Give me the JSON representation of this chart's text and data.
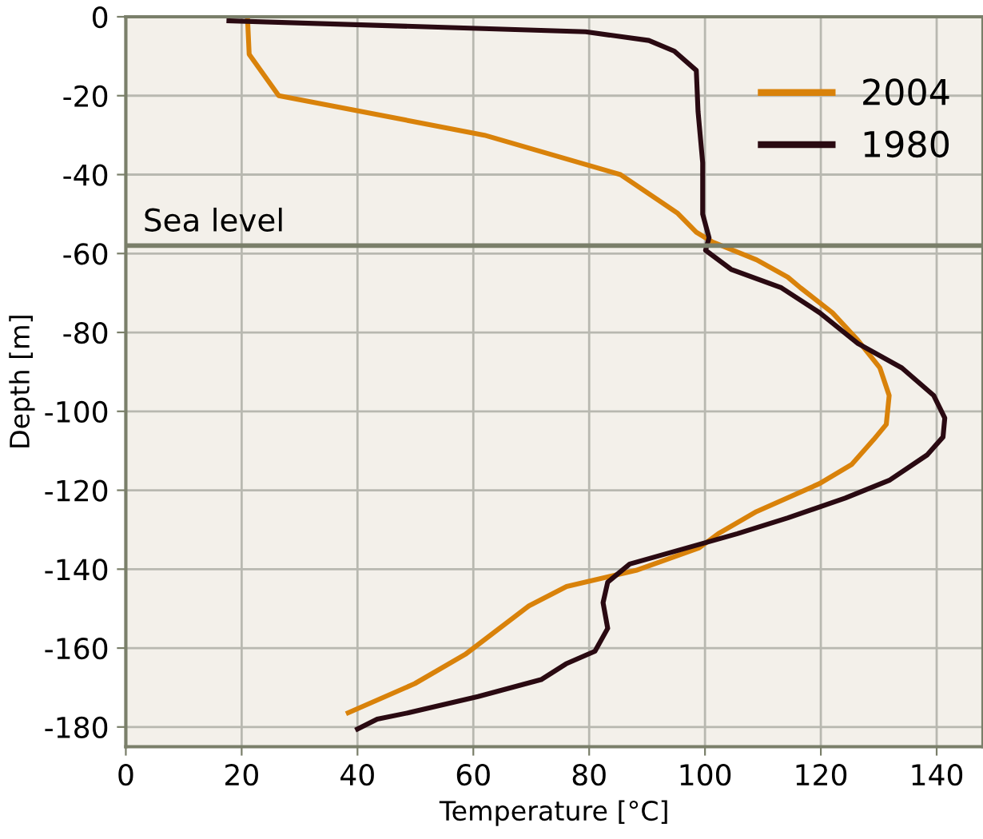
{
  "chart_data": {
    "type": "line",
    "xlabel": "Temperature [°C]",
    "ylabel": "Depth [m]",
    "xlim": [
      0,
      148
    ],
    "ylim": [
      -185,
      0
    ],
    "xticks": [
      0,
      20,
      40,
      60,
      80,
      100,
      120,
      140
    ],
    "yticks": [
      -180,
      -160,
      -140,
      -120,
      -100,
      -80,
      -60,
      -40,
      -20,
      0
    ],
    "grid": true,
    "legend": "top right",
    "marker": "none",
    "line_style": "solid",
    "ref_lines": [
      {
        "axis": "y",
        "value": -58,
        "label": "Sea level",
        "color": "#7a7f6a"
      }
    ],
    "series": [
      {
        "name": "2004",
        "color": "#d9820a",
        "x": [
          21,
          21.3,
          26.4,
          61.9,
          85.4,
          95.2,
          98.5,
          101.2,
          108.9,
          114.3,
          116.5,
          122,
          126.4,
          130.2,
          131.8,
          131.3,
          129.1,
          125.3,
          119.8,
          108.9,
          102.3,
          99,
          88.1,
          76.1,
          69.6,
          58.6,
          49.9,
          38.4
        ],
        "values": [
          0,
          -9.5,
          -20,
          -30,
          -40,
          -49.7,
          -54.6,
          -57,
          -61.6,
          -66,
          -68.7,
          -75,
          -82,
          -89,
          -96,
          -103.3,
          -107.2,
          -113.5,
          -118.3,
          -125.4,
          -131,
          -134.6,
          -140.3,
          -144.4,
          -149.3,
          -161.6,
          -169,
          -176.4
        ]
      },
      {
        "name": "1980",
        "color": "#2a0a12",
        "x": [
          17.8,
          79.4,
          90.3,
          94.7,
          98.5,
          98.8,
          99.6,
          99.6,
          100.7,
          100.1,
          104.5,
          113.2,
          119.8,
          126.4,
          134,
          139.5,
          141.4,
          141.1,
          138.4,
          131.8,
          124.2,
          114.3,
          105.6,
          87,
          83.2,
          82.4,
          83.2,
          81,
          76,
          71.7,
          60.8,
          48.8,
          43.4,
          40
        ],
        "values": [
          -1,
          -3.8,
          -6,
          -8.7,
          -13.6,
          -24,
          -37,
          -50,
          -56,
          -59.2,
          -64,
          -68.7,
          -75,
          -82.8,
          -89,
          -96,
          -101.7,
          -106.5,
          -111,
          -117.5,
          -122,
          -127,
          -131,
          -138.7,
          -143.3,
          -148.5,
          -155,
          -160.8,
          -164,
          -168,
          -172.3,
          -176.4,
          -178,
          -180.5
        ]
      }
    ]
  }
}
